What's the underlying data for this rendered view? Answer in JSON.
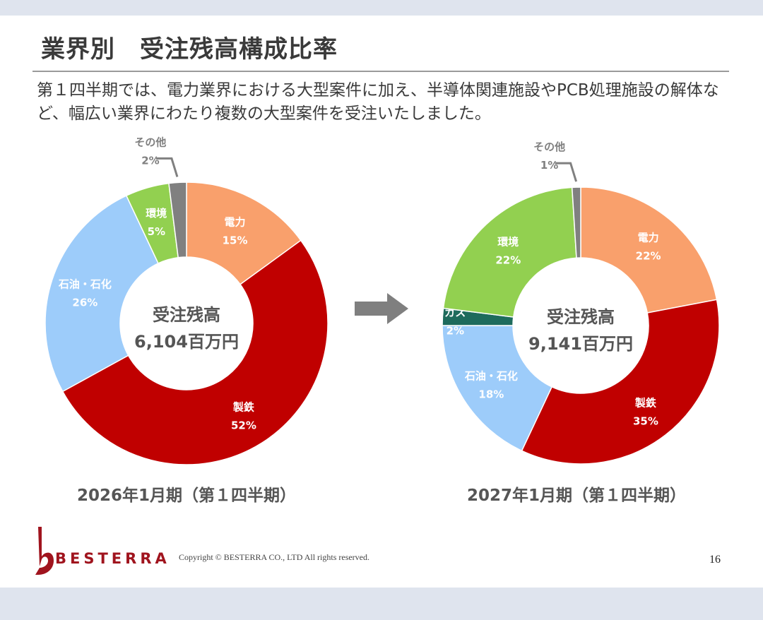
{
  "slide": {
    "title": "業界別　受注残高構成比率",
    "description": "第１四半期では、電力業界における大型案件に加え、半導体関連施設やPCB処理施設の解体など、幅広い業界にわたり複数の大型案件を受注いたしました。",
    "logo_text": "BESTERRA",
    "copyright": "Copyright © BESTERRA CO., LTD All rights reserved.",
    "page_number": "16"
  },
  "colors": {
    "電力": "#f9a06c",
    "製鉄": "#c00000",
    "石油・石化": "#9dccfa",
    "ガス": "#1e6b5c",
    "環境": "#92d050",
    "その他": "#808080",
    "arrow": "#7f7f7f",
    "brand": "#a0141e"
  },
  "chart_data": [
    {
      "type": "pie",
      "variant": "donut",
      "caption": "2026年1月期（第１四半期）",
      "center_label": "受注残高",
      "center_value": "6,104百万円",
      "series": [
        {
          "name": "電力",
          "label": "電力",
          "value": 15,
          "value_label": "15%"
        },
        {
          "name": "製鉄",
          "label": "製鉄",
          "value": 52,
          "value_label": "52%"
        },
        {
          "name": "石油・石化",
          "label": "石油・石化",
          "value": 26,
          "value_label": "26%"
        },
        {
          "name": "環境",
          "label": "環境",
          "value": 5,
          "value_label": "5%"
        },
        {
          "name": "その他",
          "label": "その他",
          "value": 2,
          "value_label": "2%"
        }
      ]
    },
    {
      "type": "pie",
      "variant": "donut",
      "caption": "2027年1月期（第１四半期）",
      "center_label": "受注残高",
      "center_value": "9,141百万円",
      "series": [
        {
          "name": "電力",
          "label": "電力",
          "value": 22,
          "value_label": "22%"
        },
        {
          "name": "製鉄",
          "label": "製鉄",
          "value": 35,
          "value_label": "35%"
        },
        {
          "name": "石油・石化",
          "label": "石油・石化",
          "value": 18,
          "value_label": "18%"
        },
        {
          "name": "ガス",
          "label": "ガス",
          "value": 2,
          "value_label": "2%"
        },
        {
          "name": "環境",
          "label": "環境",
          "value": 22,
          "value_label": "22%"
        },
        {
          "name": "その他",
          "label": "その他",
          "value": 1,
          "value_label": "1%"
        }
      ]
    }
  ]
}
